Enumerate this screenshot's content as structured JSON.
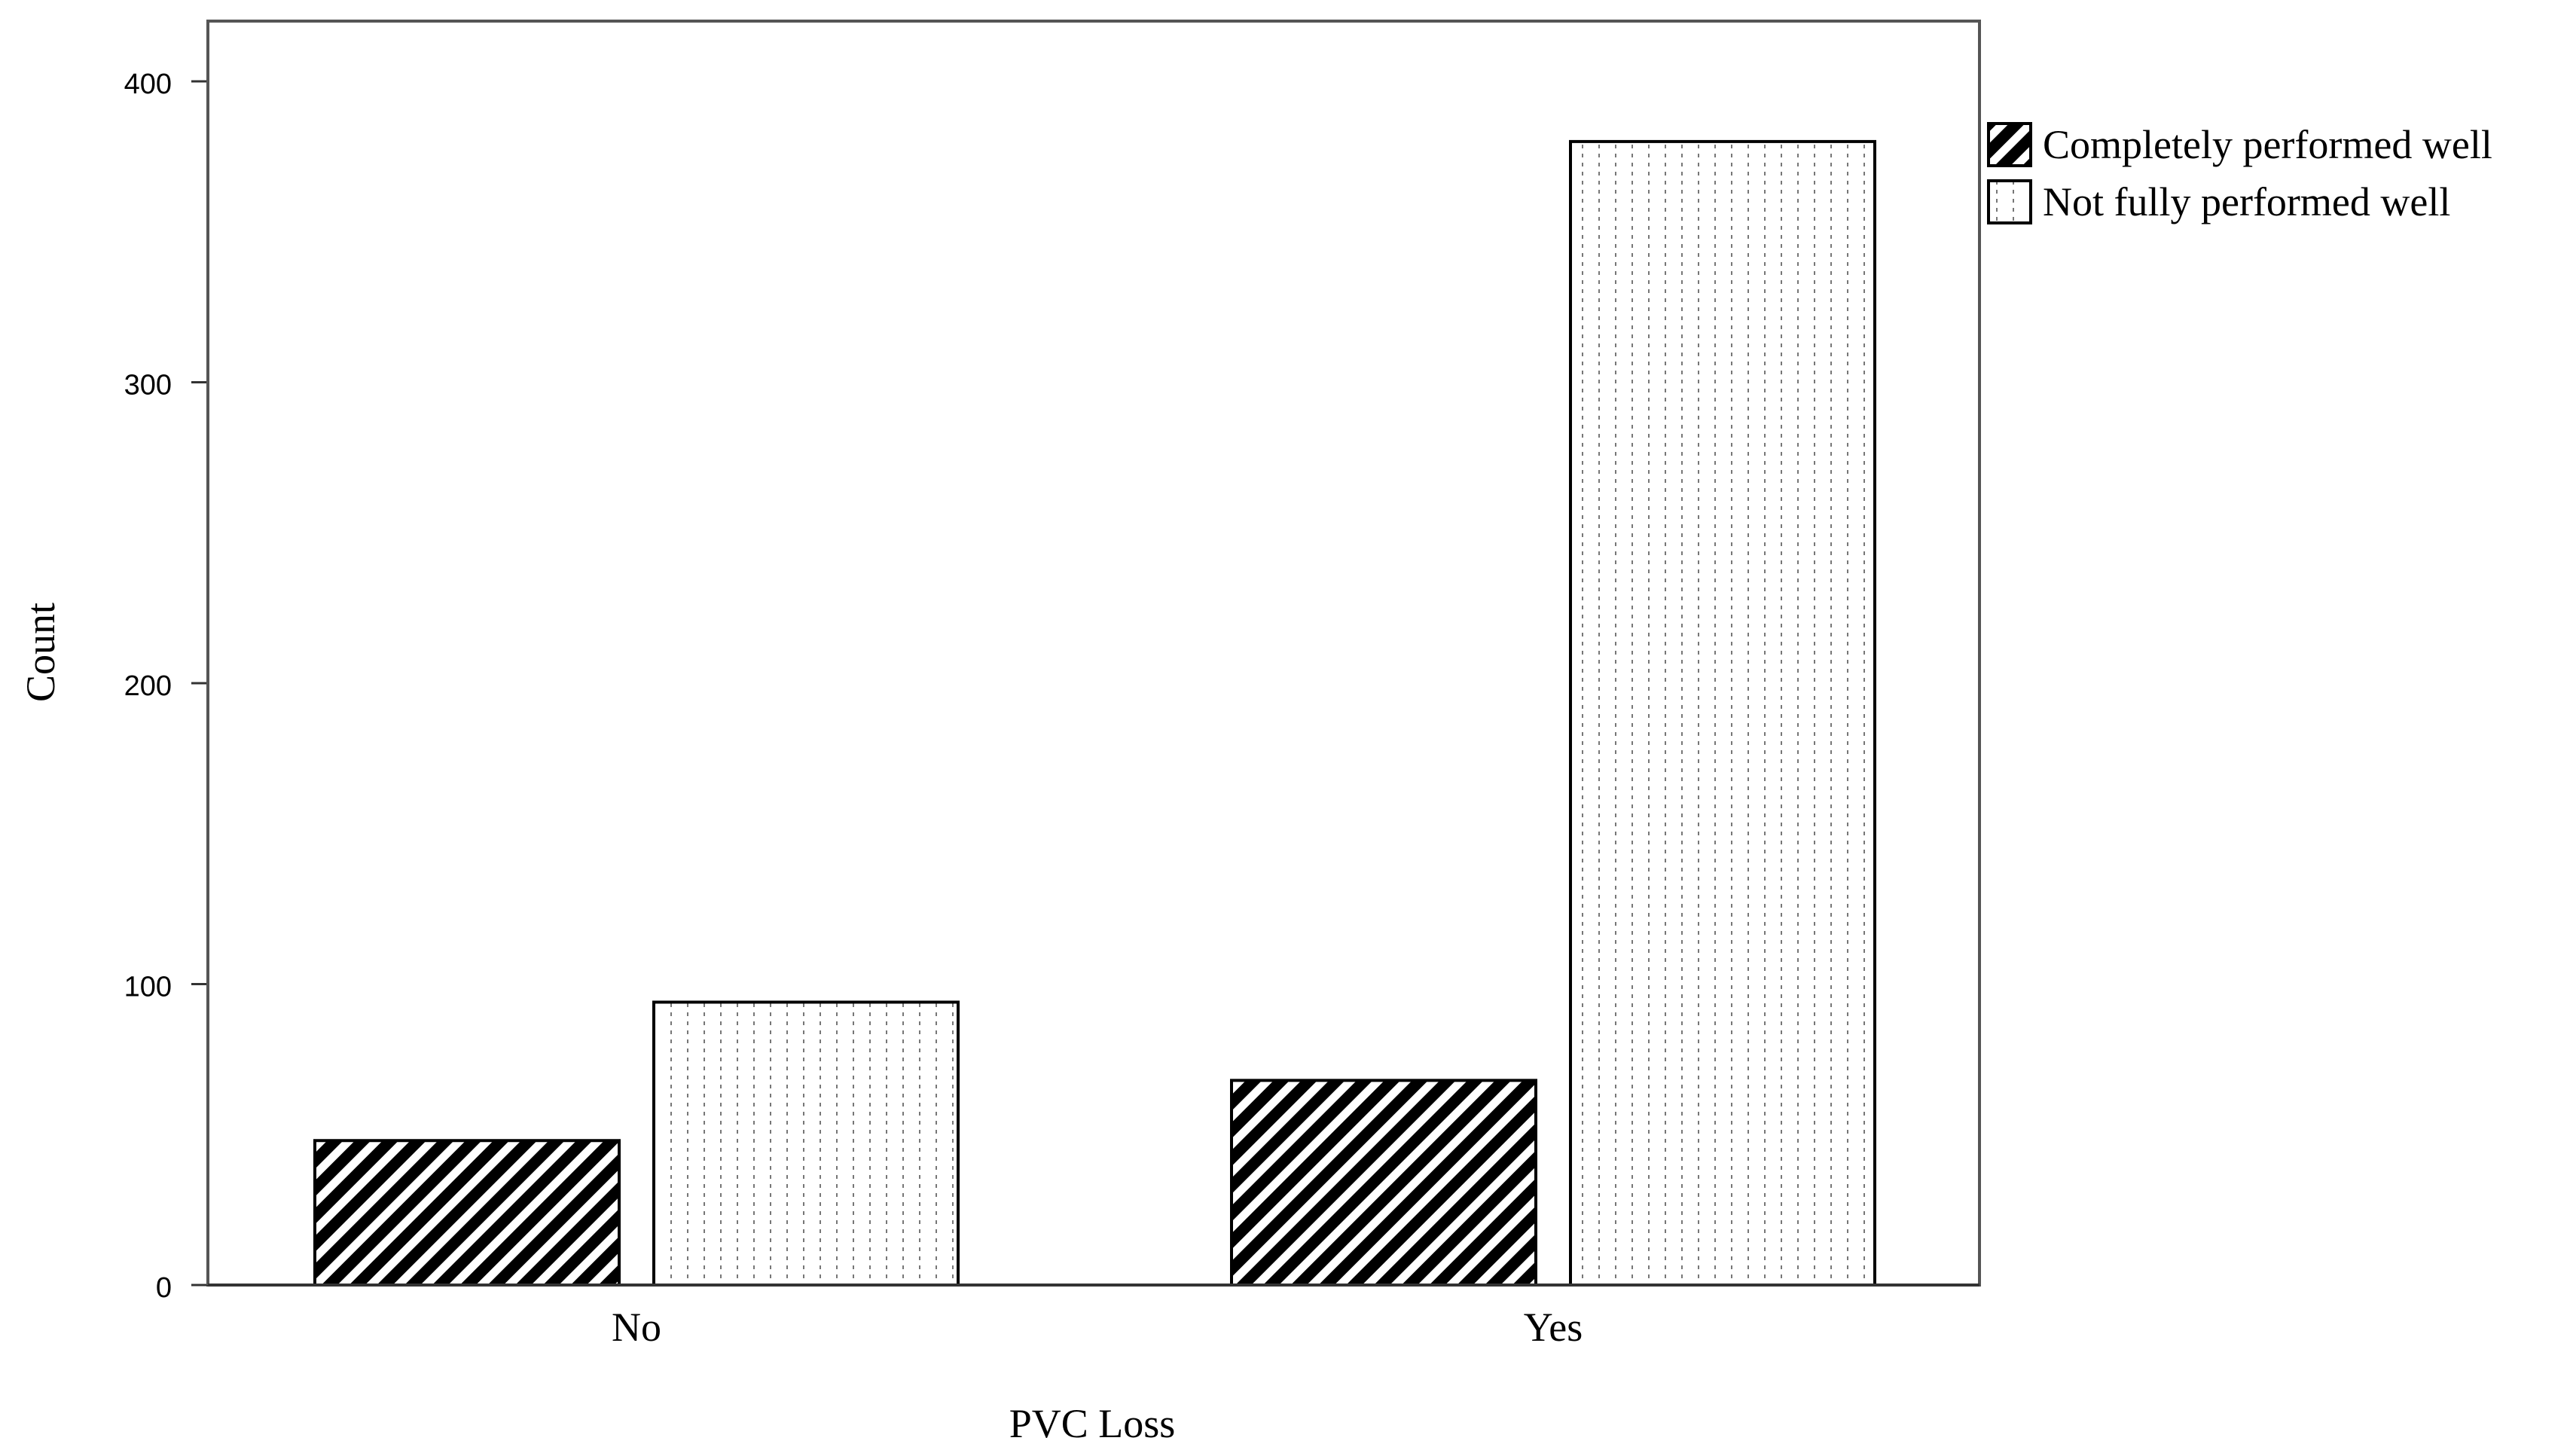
{
  "chart_data": {
    "type": "bar",
    "xlabel": "PVC Loss",
    "ylabel": "Count",
    "categories": [
      "No",
      "Yes"
    ],
    "ylim": [
      0,
      420
    ],
    "yticks": [
      0,
      100,
      200,
      300,
      400
    ],
    "series": [
      {
        "name": "Completely performed well",
        "values": [
          48,
          68
        ],
        "pattern": "diagonal-hatch"
      },
      {
        "name": "Not fully performed well",
        "values": [
          94,
          380
        ],
        "pattern": "vertical-dots"
      }
    ],
    "legend_position": "right-top",
    "grid": false
  }
}
